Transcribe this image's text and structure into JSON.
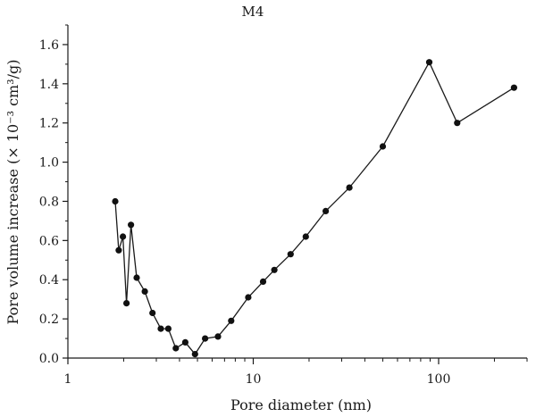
{
  "chart_data": {
    "type": "line",
    "title": "M4",
    "xlabel": "Pore diameter (nm)",
    "ylabel": "Pore volume increase (× 10⁻³ cm³/g)",
    "x_scale": "log",
    "xlim": [
      1,
      300
    ],
    "ylim": [
      0,
      1.7
    ],
    "x_ticks": [
      1,
      10,
      100
    ],
    "x_tick_labels": [
      "1",
      "10",
      "100"
    ],
    "y_ticks": [
      0,
      0.2,
      0.4,
      0.6,
      0.8,
      1.0,
      1.2,
      1.4,
      1.6
    ],
    "y_tick_labels": [
      "0.0",
      "0.2",
      "0.4",
      "0.6",
      "0.8",
      "1.0",
      "1.2",
      "1.4",
      "1.6"
    ],
    "grid": false,
    "series": [
      {
        "x": [
          1.8,
          1.88,
          1.98,
          2.07,
          2.19,
          2.35,
          2.6,
          2.86,
          3.17,
          3.48,
          3.82,
          4.3,
          4.85,
          5.5,
          6.45,
          7.6,
          9.4,
          11.3,
          13.0,
          15.9,
          19.2,
          24.6,
          33.0,
          50.0,
          89.0,
          126.0,
          255.0
        ],
        "y": [
          0.8,
          0.55,
          0.62,
          0.28,
          0.68,
          0.41,
          0.34,
          0.23,
          0.15,
          0.15,
          0.05,
          0.08,
          0.02,
          0.1,
          0.11,
          0.19,
          0.31,
          0.39,
          0.45,
          0.53,
          0.62,
          0.75,
          0.87,
          1.08,
          1.51,
          1.2,
          1.38
        ]
      }
    ]
  }
}
